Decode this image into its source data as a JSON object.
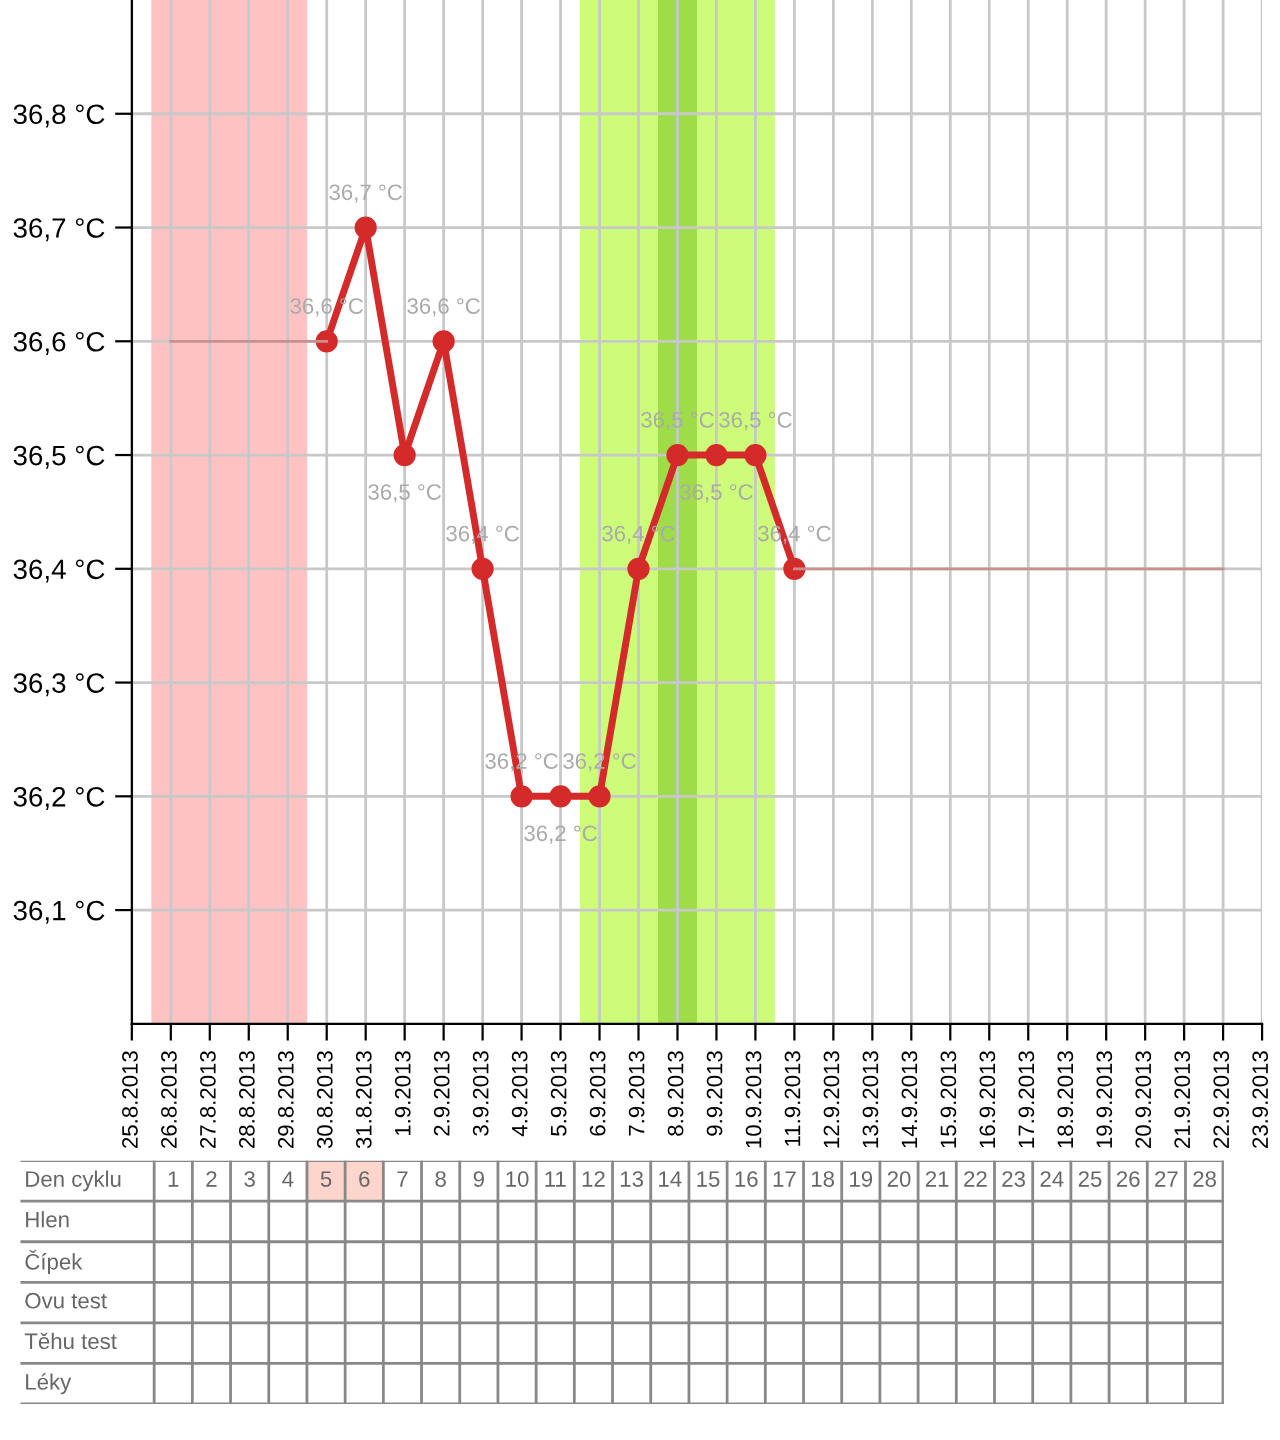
{
  "chart_data": [
    {
      "type": "line",
      "x": [
        "2013-08-30",
        "2013-08-31",
        "2013-09-01",
        "2013-09-02",
        "2013-09-03",
        "2013-09-04",
        "2013-09-05",
        "2013-09-06",
        "2013-09-07",
        "2013-09-08",
        "2013-09-09",
        "2013-09-10",
        "2013-09-11"
      ],
      "series": [
        {
          "color": "#d42a2a",
          "values": [
            36.6,
            36.7,
            36.5,
            36.6,
            36.4,
            36.2,
            36.2,
            36.2,
            36.4,
            36.5,
            36.5,
            36.5,
            36.4
          ],
          "value_labels": [
            "36,6 °C",
            "36,7 °C",
            "36,5 °C",
            "36,6 °C",
            "36,4 °C",
            "36,2 °C",
            "36,2 °C",
            "36,2 °C",
            "36,4 °C",
            "36,5 °C",
            "36,5 °C",
            "36,5 °C",
            "36,4 °C"
          ]
        },
        {
          "color": "#c99090",
          "marker": "none",
          "x": [
            "2013-08-26",
            "2013-08-27",
            "2013-08-28",
            "2013-08-29",
            "2013-08-30"
          ],
          "values": [
            36.6,
            36.6,
            36.6,
            36.6,
            36.6
          ]
        },
        {
          "color": "#c99090",
          "marker": "none",
          "x": [
            "2013-09-11",
            "2013-09-12",
            "2013-09-13",
            "2013-09-14",
            "2013-09-15",
            "2013-09-16",
            "2013-09-17",
            "2013-09-18",
            "2013-09-19",
            "2013-09-20",
            "2013-09-21",
            "2013-09-22"
          ],
          "values": [
            36.4,
            36.4,
            36.4,
            36.4,
            36.4,
            36.4,
            36.4,
            36.4,
            36.4,
            36.4,
            36.4,
            36.4
          ]
        }
      ],
      "marker": "circle",
      "grid": true,
      "xlim": [
        "2013-08-25",
        "2013-09-23"
      ],
      "xticks": [
        {
          "value": "2013-08-25",
          "label": "25.8.2013"
        },
        {
          "value": "2013-08-26",
          "label": "26.8.2013"
        },
        {
          "value": "2013-08-27",
          "label": "27.8.2013"
        },
        {
          "value": "2013-08-28",
          "label": "28.8.2013"
        },
        {
          "value": "2013-08-29",
          "label": "29.8.2013"
        },
        {
          "value": "2013-08-30",
          "label": "30.8.2013"
        },
        {
          "value": "2013-08-31",
          "label": "31.8.2013"
        },
        {
          "value": "2013-09-01",
          "label": "1.9.2013"
        },
        {
          "value": "2013-09-02",
          "label": "2.9.2013"
        },
        {
          "value": "2013-09-03",
          "label": "3.9.2013"
        },
        {
          "value": "2013-09-04",
          "label": "4.9.2013"
        },
        {
          "value": "2013-09-05",
          "label": "5.9.2013"
        },
        {
          "value": "2013-09-06",
          "label": "6.9.2013"
        },
        {
          "value": "2013-09-07",
          "label": "7.9.2013"
        },
        {
          "value": "2013-09-08",
          "label": "8.9.2013"
        },
        {
          "value": "2013-09-09",
          "label": "9.9.2013"
        },
        {
          "value": "2013-09-10",
          "label": "10.9.2013"
        },
        {
          "value": "2013-09-11",
          "label": "11.9.2013"
        },
        {
          "value": "2013-09-12",
          "label": "12.9.2013"
        },
        {
          "value": "2013-09-13",
          "label": "13.9.2013"
        },
        {
          "value": "2013-09-14",
          "label": "14.9.2013"
        },
        {
          "value": "2013-09-15",
          "label": "15.9.2013"
        },
        {
          "value": "2013-09-16",
          "label": "16.9.2013"
        },
        {
          "value": "2013-09-17",
          "label": "17.9.2013"
        },
        {
          "value": "2013-09-18",
          "label": "18.9.2013"
        },
        {
          "value": "2013-09-19",
          "label": "19.9.2013"
        },
        {
          "value": "2013-09-20",
          "label": "20.9.2013"
        },
        {
          "value": "2013-09-21",
          "label": "21.9.2013"
        },
        {
          "value": "2013-09-22",
          "label": "22.9.2013"
        },
        {
          "value": "2013-09-23",
          "label": "23.9.2013"
        }
      ],
      "ylim": [
        36.0,
        36.9
      ],
      "yticks": [
        {
          "value": 36.1,
          "label": "36,1 °C"
        },
        {
          "value": 36.2,
          "label": "36,2 °C"
        },
        {
          "value": 36.3,
          "label": "36,3 °C"
        },
        {
          "value": 36.4,
          "label": "36,4 °C"
        },
        {
          "value": 36.5,
          "label": "36,5 °C"
        },
        {
          "value": 36.6,
          "label": "36,6 °C"
        },
        {
          "value": 36.7,
          "label": "36,7 °C"
        },
        {
          "value": 36.8,
          "label": "36,8 °C"
        }
      ],
      "bands": [
        {
          "axis": "x",
          "from": "2013-08-25T12:00",
          "to": "2013-08-29T12:00",
          "color": "#ffc2c2"
        },
        {
          "axis": "x",
          "from": "2013-09-05T12:00",
          "to": "2013-09-10T12:00",
          "color": "#ccfc7a"
        },
        {
          "axis": "x",
          "from": "2013-09-07T12:00",
          "to": "2013-09-08T12:00",
          "color": "#9edd48"
        }
      ]
    },
    {
      "type": "heatmap",
      "xlabel": "Den cyklu",
      "categories": [
        "1",
        "2",
        "3",
        "4",
        "5",
        "6",
        "7",
        "8",
        "9",
        "10",
        "11",
        "12",
        "13",
        "14",
        "15",
        "16",
        "17",
        "18",
        "19",
        "20",
        "21",
        "22",
        "23",
        "24",
        "25",
        "26",
        "27",
        "28"
      ],
      "y_categories": [
        "Hlen",
        "Čípek",
        "Ovu test",
        "Těhu test",
        "Léky"
      ],
      "cells": [
        [
          null,
          null,
          null,
          null,
          null,
          null,
          null,
          null,
          null,
          null,
          null,
          null,
          null,
          null,
          null,
          null,
          null,
          null,
          null,
          null,
          null,
          null,
          null,
          null,
          null,
          null,
          null,
          null
        ],
        [
          null,
          null,
          null,
          null,
          null,
          null,
          null,
          null,
          null,
          null,
          null,
          null,
          null,
          null,
          null,
          null,
          null,
          null,
          null,
          null,
          null,
          null,
          null,
          null,
          null,
          null,
          null,
          null
        ],
        [
          null,
          null,
          null,
          null,
          null,
          null,
          null,
          null,
          null,
          null,
          null,
          null,
          null,
          null,
          null,
          null,
          null,
          null,
          null,
          null,
          null,
          null,
          null,
          null,
          null,
          null,
          null,
          null
        ],
        [
          null,
          null,
          null,
          null,
          null,
          null,
          null,
          null,
          null,
          null,
          null,
          null,
          null,
          null,
          null,
          null,
          null,
          null,
          null,
          null,
          null,
          null,
          null,
          null,
          null,
          null,
          null,
          null
        ],
        [
          null,
          null,
          null,
          null,
          null,
          null,
          null,
          null,
          null,
          null,
          null,
          null,
          null,
          null,
          null,
          null,
          null,
          null,
          null,
          null,
          null,
          null,
          null,
          null,
          null,
          null,
          null,
          null
        ]
      ],
      "bands": [
        {
          "axis": "x",
          "from": "5",
          "to": "6",
          "color": "#fdd5cc"
        }
      ]
    }
  ]
}
